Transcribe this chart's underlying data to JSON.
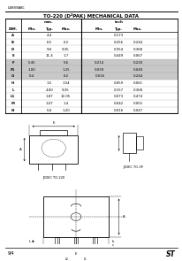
{
  "header_label": "L8809ABC",
  "table_title": "TO-220 (D²PAK) MECHANICAL DATA",
  "dims": [
    "A",
    "B",
    "D",
    "E",
    "F",
    "F1",
    "G",
    "H",
    "L",
    "L1",
    "M",
    "N"
  ],
  "mm_min": [
    "",
    "",
    "",
    "",
    "5.45",
    "1.00",
    "0.4",
    "",
    "",
    "",
    "",
    ""
  ],
  "mm_typ": [
    "4.4",
    "6.5",
    "9.0",
    "11.4",
    "",
    "",
    "",
    "1.5",
    "4.00",
    "1.87",
    "1.07",
    "0.4"
  ],
  "mm_max": [
    "",
    "6.2",
    "9.35",
    "1.7",
    "5.6",
    "1.25",
    "6.2",
    "1.54",
    "9.35",
    "12.05",
    "1.4",
    "1.20"
  ],
  "in_min": [
    "",
    "",
    "",
    "",
    "0.214",
    "0.039",
    "0.016",
    "",
    "",
    "",
    "",
    ""
  ],
  "in_typ": [
    "0.173",
    "0.256",
    "0.354",
    "0.449",
    "",
    "",
    "",
    "0.059",
    "0.157",
    "0.073",
    "0.042",
    "0.016"
  ],
  "in_max": [
    "",
    "0.244",
    "0.368",
    "0.067",
    "0.220",
    "0.049",
    "0.244",
    "0.061",
    "0.368",
    "0.474",
    "0.055",
    "0.047"
  ],
  "highlight_rows": [
    4,
    5,
    6
  ],
  "gray": "#c8c8c8",
  "bg": "#ffffff",
  "fg": "#000000",
  "page": "9/4",
  "brand": "ST",
  "table_title_fontsize": 4.0,
  "header_fontsize": 3.0,
  "cell_fontsize": 2.8
}
